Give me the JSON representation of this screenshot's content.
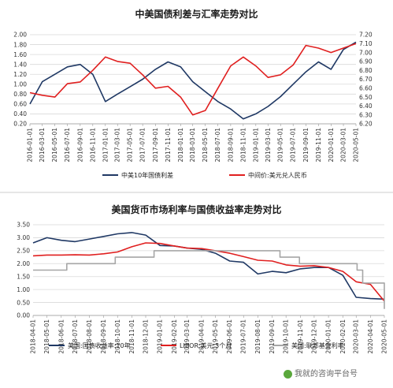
{
  "watermark": {
    "text": "我就的咨询平台号"
  },
  "chart_data": [
    {
      "type": "line",
      "title": "中美国债利差与汇率走势对比",
      "x_ticks": [
        "2016-01-01",
        "2016-03-01",
        "2016-05-01",
        "2016-07-01",
        "2016-09-01",
        "2016-11-01",
        "2017-01-01",
        "2017-03-01",
        "2017-05-01",
        "2017-07-01",
        "2017-09-01",
        "2017-11-01",
        "2018-01-01",
        "2018-03-01",
        "2018-05-01",
        "2018-07-01",
        "2018-09-01",
        "2018-11-01",
        "2019-01-01",
        "2019-03-01",
        "2019-05-01",
        "2019-07-01",
        "2019-09-01",
        "2019-11-01",
        "2020-01-01",
        "2020-03-01",
        "2020-05-01"
      ],
      "y_left": {
        "min": 0.2,
        "max": 2.0,
        "ticks": [
          "0.20",
          "0.40",
          "0.60",
          "0.80",
          "1.00",
          "1.20",
          "1.40",
          "1.60",
          "1.80",
          "2.00"
        ]
      },
      "y_right": {
        "min": 6.2,
        "max": 7.2,
        "ticks": [
          "6.20",
          "6.30",
          "6.40",
          "6.50",
          "6.60",
          "6.70",
          "6.80",
          "6.90",
          "7.00",
          "7.10",
          "7.20"
        ]
      },
      "grid": true,
      "legend_position": "bottom",
      "series": [
        {
          "name": "中美10年国债利差",
          "axis": "left",
          "color": "#1f3864",
          "x": [
            "2016-01-01",
            "2016-03-01",
            "2016-05-01",
            "2016-07-01",
            "2016-09-01",
            "2016-11-01",
            "2017-01-01",
            "2017-03-01",
            "2017-05-01",
            "2017-07-01",
            "2017-09-01",
            "2017-11-01",
            "2018-01-01",
            "2018-03-01",
            "2018-05-01",
            "2018-07-01",
            "2018-09-01",
            "2018-11-01",
            "2019-01-01",
            "2019-03-01",
            "2019-05-01",
            "2019-07-01",
            "2019-09-01",
            "2019-11-01",
            "2020-01-01",
            "2020-03-01",
            "2020-05-01"
          ],
          "values": [
            0.6,
            1.05,
            1.2,
            1.35,
            1.4,
            1.2,
            0.65,
            0.8,
            0.95,
            1.1,
            1.3,
            1.45,
            1.35,
            1.05,
            0.85,
            0.65,
            0.5,
            0.3,
            0.4,
            0.55,
            0.75,
            1.0,
            1.25,
            1.45,
            1.3,
            1.7,
            1.85
          ]
        },
        {
          "name": "中间价:美元兑人民币",
          "axis": "right",
          "color": "#e01f1f",
          "x": [
            "2016-01-01",
            "2016-03-01",
            "2016-05-01",
            "2016-07-01",
            "2016-09-01",
            "2016-11-01",
            "2017-01-01",
            "2017-03-01",
            "2017-05-01",
            "2017-07-01",
            "2017-09-01",
            "2017-11-01",
            "2018-01-01",
            "2018-03-01",
            "2018-05-01",
            "2018-07-01",
            "2018-09-01",
            "2018-11-01",
            "2019-01-01",
            "2019-03-01",
            "2019-05-01",
            "2019-07-01",
            "2019-09-01",
            "2019-11-01",
            "2020-01-01",
            "2020-03-01",
            "2020-05-01"
          ],
          "values": [
            6.55,
            6.52,
            6.5,
            6.65,
            6.67,
            6.8,
            6.95,
            6.9,
            6.88,
            6.75,
            6.6,
            6.62,
            6.5,
            6.3,
            6.35,
            6.6,
            6.85,
            6.95,
            6.85,
            6.72,
            6.75,
            6.86,
            7.08,
            7.05,
            7.0,
            7.05,
            7.1
          ]
        }
      ]
    },
    {
      "type": "line",
      "title": "美国货币市场利率与国债收益率走势对比",
      "x_ticks": [
        "2018-04-01",
        "2018-05-01",
        "2018-06-01",
        "2018-07-01",
        "2018-08-01",
        "2018-09-01",
        "2018-10-01",
        "2018-11-01",
        "2018-12-01",
        "2019-01-01",
        "2019-02-01",
        "2019-03-01",
        "2019-04-01",
        "2019-05-01",
        "2019-06-01",
        "2019-07-01",
        "2019-08-01",
        "2019-09-01",
        "2019-10-01",
        "2019-11-01",
        "2019-12-01",
        "2020-01-01",
        "2020-02-01",
        "2020-03-01",
        "2020-04-01",
        "2020-05-01"
      ],
      "y": {
        "min": 0.0,
        "max": 3.5,
        "ticks": [
          "0.00",
          "0.50",
          "1.00",
          "1.50",
          "2.00",
          "2.50",
          "3.00",
          "3.50"
        ]
      },
      "grid": true,
      "legend_position": "bottom",
      "series": [
        {
          "name": "美国:国债收益率:10年",
          "color": "#1f3864",
          "x": [
            "2018-04-01",
            "2018-05-01",
            "2018-06-01",
            "2018-07-01",
            "2018-08-01",
            "2018-09-01",
            "2018-10-01",
            "2018-11-01",
            "2018-12-01",
            "2019-01-01",
            "2019-02-01",
            "2019-03-01",
            "2019-04-01",
            "2019-05-01",
            "2019-06-01",
            "2019-07-01",
            "2019-08-01",
            "2019-09-01",
            "2019-10-01",
            "2019-11-01",
            "2019-12-01",
            "2020-01-01",
            "2020-02-01",
            "2020-03-01",
            "2020-04-01",
            "2020-05-01"
          ],
          "values": [
            2.8,
            3.0,
            2.9,
            2.85,
            2.95,
            3.05,
            3.15,
            3.2,
            3.1,
            2.7,
            2.68,
            2.6,
            2.55,
            2.4,
            2.1,
            2.05,
            1.6,
            1.7,
            1.65,
            1.8,
            1.85,
            1.85,
            1.55,
            0.7,
            0.65,
            0.63
          ]
        },
        {
          "name": "LIBOR:美元:3个月",
          "color": "#e01f1f",
          "x": [
            "2018-04-01",
            "2018-05-01",
            "2018-06-01",
            "2018-07-01",
            "2018-08-01",
            "2018-09-01",
            "2018-10-01",
            "2018-11-01",
            "2018-12-01",
            "2019-01-01",
            "2019-02-01",
            "2019-03-01",
            "2019-04-01",
            "2019-05-01",
            "2019-06-01",
            "2019-07-01",
            "2019-08-01",
            "2019-09-01",
            "2019-10-01",
            "2019-11-01",
            "2019-12-01",
            "2020-01-01",
            "2020-02-01",
            "2020-03-01",
            "2020-04-01",
            "2020-05-01"
          ],
          "values": [
            2.3,
            2.33,
            2.33,
            2.34,
            2.33,
            2.38,
            2.45,
            2.65,
            2.8,
            2.78,
            2.68,
            2.6,
            2.58,
            2.5,
            2.4,
            2.27,
            2.13,
            2.1,
            1.95,
            1.9,
            1.92,
            1.85,
            1.7,
            1.3,
            1.2,
            0.55
          ]
        },
        {
          "name": "美国:联邦基金利率",
          "color": "#a6a6a6",
          "x": [
            "2018-04-01",
            "2018-06-01",
            "2018-06-13",
            "2018-09-26",
            "2018-12-19",
            "2019-07-31",
            "2019-09-18",
            "2019-10-30",
            "2020-03-03",
            "2020-03-15",
            "2020-05-01"
          ],
          "values": [
            1.75,
            1.75,
            2.0,
            2.25,
            2.5,
            2.5,
            2.25,
            2.0,
            1.75,
            1.25,
            0.25
          ]
        }
      ]
    }
  ]
}
